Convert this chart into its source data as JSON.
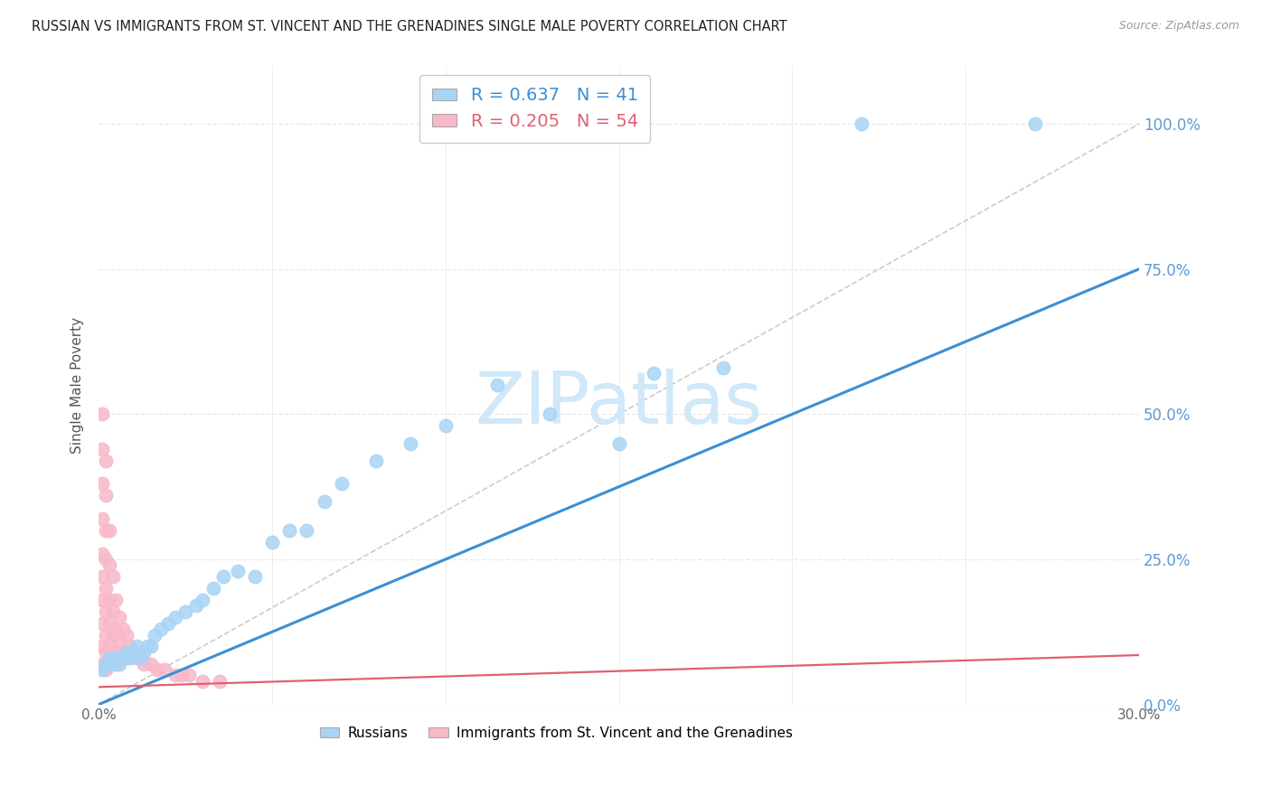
{
  "title": "RUSSIAN VS IMMIGRANTS FROM ST. VINCENT AND THE GRENADINES SINGLE MALE POVERTY CORRELATION CHART",
  "source": "Source: ZipAtlas.com",
  "ylabel": "Single Male Poverty",
  "xlim": [
    0,
    0.3
  ],
  "ylim": [
    0,
    1.1
  ],
  "ytick_labels": [
    "0.0%",
    "25.0%",
    "50.0%",
    "75.0%",
    "100.0%"
  ],
  "ytick_values": [
    0,
    0.25,
    0.5,
    0.75,
    1.0
  ],
  "xtick_labels": [
    "0.0%",
    "",
    "",
    "",
    "",
    "",
    "30.0%"
  ],
  "xtick_values": [
    0,
    0.05,
    0.1,
    0.15,
    0.2,
    0.25,
    0.3
  ],
  "russians_R": 0.637,
  "russians_N": 41,
  "svg_R": 0.205,
  "svg_N": 54,
  "blue_scatter_color": "#A8D4F5",
  "pink_scatter_color": "#F8B8C8",
  "blue_line_color": "#3B8FD4",
  "pink_line_color": "#E06070",
  "ref_line_color": "#CCCCCC",
  "grid_color": "#E8E8E8",
  "watermark_color": "#D0E8F8",
  "background_color": "#FFFFFF",
  "title_color": "#222222",
  "source_color": "#999999",
  "ylabel_color": "#555555",
  "ytick_color": "#5B9BD5",
  "xtick_color": "#666666",
  "russians_x": [
    0.001,
    0.002,
    0.003,
    0.004,
    0.005,
    0.006,
    0.007,
    0.008,
    0.009,
    0.01,
    0.011,
    0.012,
    0.013,
    0.014,
    0.015,
    0.016,
    0.018,
    0.02,
    0.022,
    0.025,
    0.028,
    0.03,
    0.033,
    0.036,
    0.04,
    0.045,
    0.05,
    0.055,
    0.06,
    0.065,
    0.07,
    0.08,
    0.09,
    0.1,
    0.115,
    0.13,
    0.15,
    0.16,
    0.18,
    0.22,
    0.27
  ],
  "russians_y": [
    0.06,
    0.07,
    0.08,
    0.07,
    0.08,
    0.07,
    0.08,
    0.09,
    0.08,
    0.09,
    0.1,
    0.08,
    0.09,
    0.1,
    0.1,
    0.12,
    0.13,
    0.14,
    0.15,
    0.16,
    0.17,
    0.18,
    0.2,
    0.22,
    0.23,
    0.22,
    0.28,
    0.3,
    0.3,
    0.35,
    0.38,
    0.42,
    0.45,
    0.48,
    0.55,
    0.5,
    0.45,
    0.57,
    0.58,
    1.0,
    1.0
  ],
  "svgc_x": [
    0.001,
    0.001,
    0.001,
    0.001,
    0.001,
    0.001,
    0.001,
    0.001,
    0.001,
    0.001,
    0.002,
    0.002,
    0.002,
    0.002,
    0.002,
    0.002,
    0.002,
    0.002,
    0.002,
    0.002,
    0.003,
    0.003,
    0.003,
    0.003,
    0.003,
    0.003,
    0.004,
    0.004,
    0.004,
    0.004,
    0.005,
    0.005,
    0.005,
    0.005,
    0.006,
    0.006,
    0.006,
    0.007,
    0.007,
    0.008,
    0.008,
    0.009,
    0.01,
    0.011,
    0.012,
    0.013,
    0.015,
    0.017,
    0.019,
    0.022,
    0.024,
    0.026,
    0.03,
    0.035
  ],
  "svgc_y": [
    0.5,
    0.44,
    0.38,
    0.32,
    0.26,
    0.22,
    0.18,
    0.14,
    0.1,
    0.07,
    0.42,
    0.36,
    0.3,
    0.25,
    0.2,
    0.16,
    0.12,
    0.09,
    0.07,
    0.06,
    0.3,
    0.24,
    0.18,
    0.14,
    0.1,
    0.07,
    0.22,
    0.16,
    0.12,
    0.08,
    0.18,
    0.13,
    0.09,
    0.07,
    0.15,
    0.11,
    0.08,
    0.13,
    0.09,
    0.12,
    0.08,
    0.1,
    0.09,
    0.08,
    0.08,
    0.07,
    0.07,
    0.06,
    0.06,
    0.05,
    0.05,
    0.05,
    0.04,
    0.04
  ]
}
